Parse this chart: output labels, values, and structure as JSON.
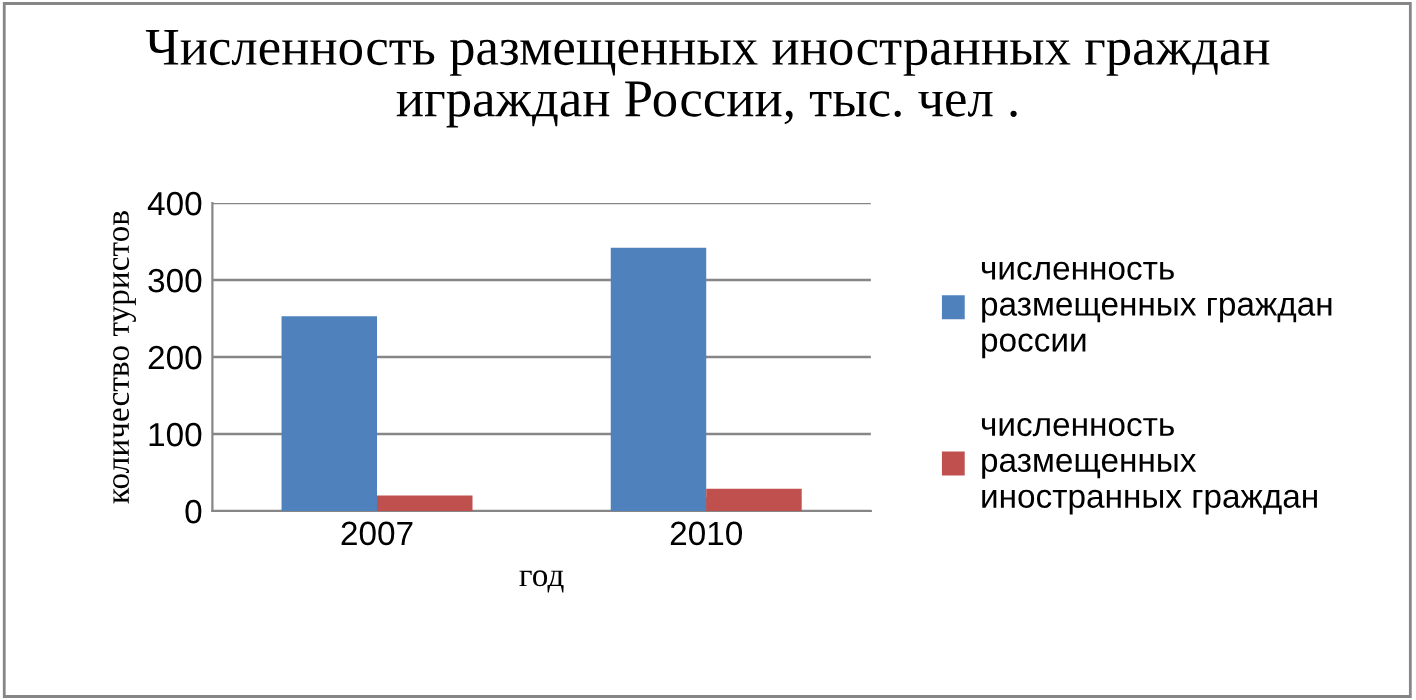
{
  "chart_data": {
    "type": "bar",
    "title": "Численность размещенных иностранных граждан играждан России, тыс. чел .",
    "xlabel": "год",
    "ylabel": "количество туристов",
    "categories": [
      "2007",
      "2010"
    ],
    "series": [
      {
        "name": "численность размещенных граждан россии",
        "color": "#4f81bd",
        "values": [
          253,
          342
        ]
      },
      {
        "name": "численность размещенных иностранных граждан",
        "color": "#c0504d",
        "values": [
          20,
          29
        ]
      }
    ],
    "ylim": [
      0,
      400
    ],
    "yticks": [
      0,
      100,
      200,
      300,
      400
    ],
    "grid": "y",
    "legend": "right"
  }
}
